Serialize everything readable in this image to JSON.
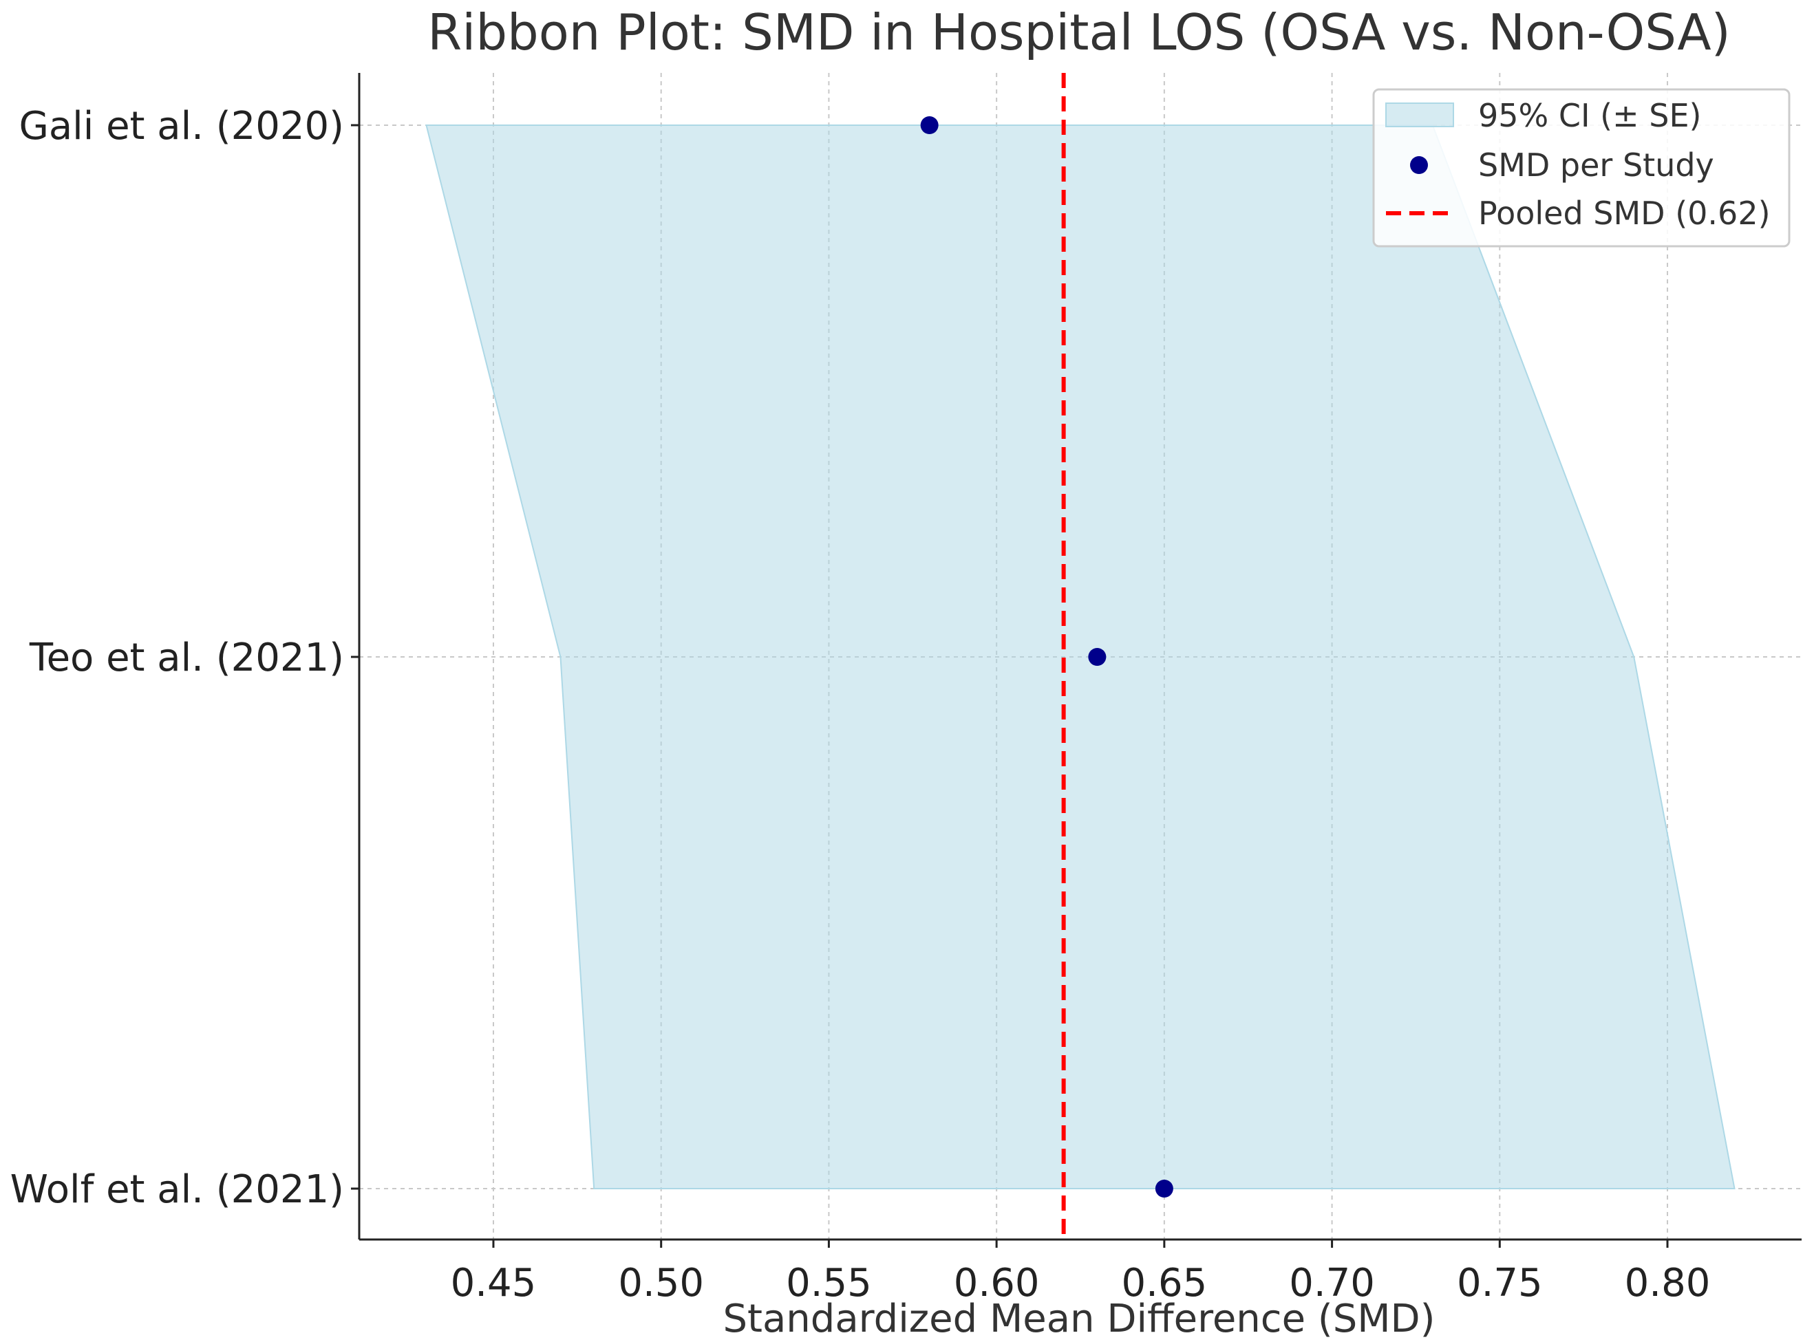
{
  "chart_data": {
    "type": "ribbon",
    "title": "Ribbon Plot: SMD in Hospital LOS (OSA vs. Non-OSA)",
    "xlabel": "Standardized Mean Difference (SMD)",
    "ylabel": "",
    "xlim": [
      0.41,
      0.84
    ],
    "xticks": [
      0.45,
      0.5,
      0.55,
      0.6,
      0.65,
      0.7,
      0.75,
      0.8
    ],
    "xtick_labels": [
      "0.45",
      "0.50",
      "0.55",
      "0.60",
      "0.65",
      "0.70",
      "0.75",
      "0.80"
    ],
    "grid": true,
    "legend_position": "top-right",
    "categories": [
      "Gali et al. (2020)",
      "Teo et al. (2021)",
      "Wolf et al. (2021)"
    ],
    "series": [
      {
        "name": "SMD per Study",
        "kind": "points",
        "color": "#00008b",
        "values": [
          0.58,
          0.63,
          0.65
        ]
      },
      {
        "name": "95% CI (± SE)",
        "kind": "ribbon",
        "color": "#add8e6",
        "lower": [
          0.43,
          0.47,
          0.48
        ],
        "upper": [
          0.73,
          0.79,
          0.82
        ]
      },
      {
        "name": "Pooled SMD (0.62)",
        "kind": "vline",
        "color": "#ff0000",
        "value": 0.62
      }
    ],
    "legend": [
      "95% CI (± SE)",
      "SMD per Study",
      "Pooled SMD (0.62)"
    ]
  }
}
